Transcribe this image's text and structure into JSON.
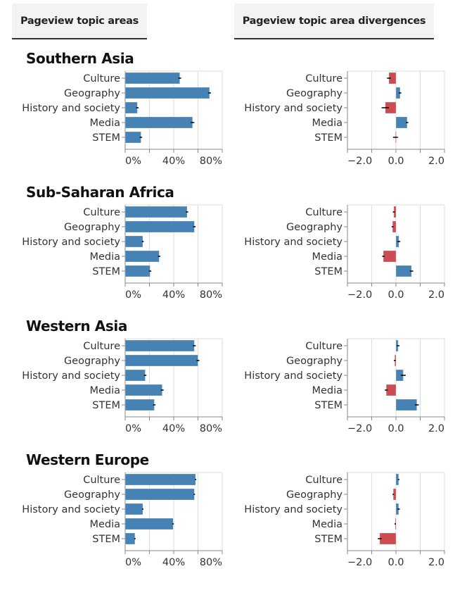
{
  "tabs": [
    {
      "label": "Pageview topic areas"
    },
    {
      "label": "Pageview topic area divergences"
    }
  ],
  "colors": {
    "bar": "#4682b4",
    "positive": "#4682b4",
    "negative": "#cc4c52",
    "grid": "#dddddd",
    "axis": "#888888",
    "errorbar": "#000000"
  },
  "chart_data": [
    {
      "region": "Southern Asia",
      "charts": [
        {
          "type": "bar",
          "orientation": "horizontal",
          "title": "Pageview topic areas",
          "categories": [
            "Culture",
            "Geography",
            "History and society",
            "Media",
            "STEM"
          ],
          "values": [
            0.45,
            0.695,
            0.1,
            0.555,
            0.13
          ],
          "error": [
            0.012,
            0.012,
            0.01,
            0.015,
            0.01
          ],
          "xlim": [
            0,
            0.8
          ],
          "ticks": [
            0,
            0.2,
            0.4,
            0.6,
            0.8
          ],
          "tick_labels": [
            "0%",
            "40%",
            "80%"
          ],
          "grid": true
        },
        {
          "type": "bar",
          "orientation": "horizontal",
          "title": "Pageview topic area divergences",
          "categories": [
            "Culture",
            "Geography",
            "History and society",
            "Media",
            "STEM"
          ],
          "values": [
            -0.29,
            0.17,
            -0.44,
            0.46,
            -0.02
          ],
          "error": [
            0.08,
            0.05,
            0.15,
            0.05,
            0.1
          ],
          "xlim": [
            -2,
            2
          ],
          "ticks": [
            -2,
            -1,
            0,
            1,
            2
          ],
          "tick_labels": [
            "-2.0",
            "0.0",
            "2.0"
          ],
          "grid": true
        }
      ]
    },
    {
      "region": "Sub-Saharan Africa",
      "charts": [
        {
          "type": "bar",
          "orientation": "horizontal",
          "title": "Pageview topic areas",
          "categories": [
            "Culture",
            "Geography",
            "History and society",
            "Media",
            "STEM"
          ],
          "values": [
            0.51,
            0.57,
            0.145,
            0.28,
            0.205
          ],
          "error": [
            0.01,
            0.01,
            0.008,
            0.01,
            0.01
          ],
          "xlim": [
            0,
            0.8
          ],
          "ticks": [
            0,
            0.2,
            0.4,
            0.6,
            0.8
          ],
          "tick_labels": [
            "0%",
            "40%",
            "80%"
          ],
          "grid": true
        },
        {
          "type": "bar",
          "orientation": "horizontal",
          "title": "Pageview topic area divergences",
          "categories": [
            "Culture",
            "Geography",
            "History and society",
            "Media",
            "STEM"
          ],
          "values": [
            -0.09,
            -0.14,
            0.12,
            -0.52,
            0.64
          ],
          "error": [
            0.04,
            0.04,
            0.06,
            0.05,
            0.07
          ],
          "xlim": [
            -2,
            2
          ],
          "ticks": [
            -2,
            -1,
            0,
            1,
            2
          ],
          "tick_labels": [
            "-2.0",
            "0.0",
            "2.0"
          ],
          "grid": true
        }
      ]
    },
    {
      "region": "Western Asia",
      "charts": [
        {
          "type": "bar",
          "orientation": "horizontal",
          "title": "Pageview topic areas",
          "categories": [
            "Culture",
            "Geography",
            "History and society",
            "Media",
            "STEM"
          ],
          "values": [
            0.57,
            0.6,
            0.165,
            0.305,
            0.24
          ],
          "error": [
            0.012,
            0.012,
            0.01,
            0.012,
            0.01
          ],
          "xlim": [
            0,
            0.8
          ],
          "ticks": [
            0,
            0.2,
            0.4,
            0.6,
            0.8
          ],
          "tick_labels": [
            "0%",
            "40%",
            "80%"
          ],
          "grid": true
        },
        {
          "type": "bar",
          "orientation": "horizontal",
          "title": "Pageview topic area divergences",
          "categories": [
            "Culture",
            "Geography",
            "History and society",
            "Media",
            "STEM"
          ],
          "values": [
            0.09,
            -0.05,
            0.3,
            -0.4,
            0.86
          ],
          "error": [
            0.05,
            0.04,
            0.1,
            0.06,
            0.08
          ],
          "xlim": [
            -2,
            2
          ],
          "ticks": [
            -2,
            -1,
            0,
            1,
            2
          ],
          "tick_labels": [
            "-2.0",
            "0.0",
            "2.0"
          ],
          "grid": true
        }
      ]
    },
    {
      "region": "Western Europe",
      "charts": [
        {
          "type": "bar",
          "orientation": "horizontal",
          "title": "Pageview topic areas",
          "categories": [
            "Culture",
            "Geography",
            "History and society",
            "Media",
            "STEM"
          ],
          "values": [
            0.58,
            0.57,
            0.145,
            0.395,
            0.08
          ],
          "error": [
            0.006,
            0.006,
            0.006,
            0.006,
            0.006
          ],
          "xlim": [
            0,
            0.8
          ],
          "ticks": [
            0,
            0.2,
            0.4,
            0.6,
            0.8
          ],
          "tick_labels": [
            "0%",
            "40%",
            "80%"
          ],
          "grid": true
        },
        {
          "type": "bar",
          "orientation": "horizontal",
          "title": "Pageview topic area divergences",
          "categories": [
            "Culture",
            "Geography",
            "History and society",
            "Media",
            "STEM"
          ],
          "values": [
            0.11,
            -0.11,
            0.11,
            -0.03,
            -0.67
          ],
          "error": [
            0.03,
            0.03,
            0.05,
            0.03,
            0.08
          ],
          "xlim": [
            -2,
            2
          ],
          "ticks": [
            -2,
            -1,
            0,
            1,
            2
          ],
          "tick_labels": [
            "-2.0",
            "0.0",
            "2.0"
          ],
          "grid": true
        }
      ]
    }
  ]
}
